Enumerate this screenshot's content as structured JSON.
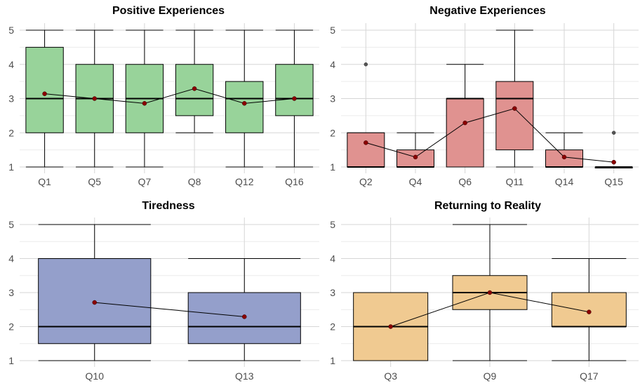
{
  "chart_data": [
    {
      "type": "box",
      "title": "Positive Experiences",
      "xlabel": "",
      "ylabel": "",
      "ylim": [
        1,
        5
      ],
      "yticks": [
        "1",
        "2",
        "3",
        "4",
        "5"
      ],
      "grid": true,
      "box_color": "#98D39A",
      "mean_line": true,
      "categories": [
        "Q1",
        "Q5",
        "Q7",
        "Q8",
        "Q12",
        "Q16"
      ],
      "boxes": [
        {
          "min": 1,
          "q1": 2,
          "median": 3,
          "q3": 4.5,
          "max": 5,
          "mean": 3.14,
          "outliers": []
        },
        {
          "min": 1,
          "q1": 2,
          "median": 3,
          "q3": 4,
          "max": 5,
          "mean": 3.0,
          "outliers": []
        },
        {
          "min": 1,
          "q1": 2,
          "median": 3,
          "q3": 4,
          "max": 5,
          "mean": 2.86,
          "outliers": []
        },
        {
          "min": 2,
          "q1": 2.5,
          "median": 3,
          "q3": 4,
          "max": 5,
          "mean": 3.29,
          "outliers": []
        },
        {
          "min": 1,
          "q1": 2,
          "median": 3,
          "q3": 3.5,
          "max": 5,
          "mean": 2.86,
          "outliers": []
        },
        {
          "min": 1,
          "q1": 2.5,
          "median": 3,
          "q3": 4,
          "max": 5,
          "mean": 3.0,
          "outliers": []
        }
      ]
    },
    {
      "type": "box",
      "title": "Negative Experiences",
      "xlabel": "",
      "ylabel": "",
      "ylim": [
        1,
        5
      ],
      "yticks": [
        "1",
        "2",
        "3",
        "4",
        "5"
      ],
      "grid": true,
      "box_color": "#E09290",
      "mean_line": true,
      "categories": [
        "Q2",
        "Q4",
        "Q6",
        "Q11",
        "Q14",
        "Q15"
      ],
      "boxes": [
        {
          "min": 1,
          "q1": 1,
          "median": 1,
          "q3": 2,
          "max": 2,
          "mean": 1.71,
          "outliers": [
            4
          ]
        },
        {
          "min": 1,
          "q1": 1,
          "median": 1,
          "q3": 1.5,
          "max": 2,
          "mean": 1.29,
          "outliers": []
        },
        {
          "min": 1,
          "q1": 1,
          "median": 3,
          "q3": 3,
          "max": 4,
          "mean": 2.29,
          "outliers": []
        },
        {
          "min": 1,
          "q1": 1.5,
          "median": 3,
          "q3": 3.5,
          "max": 5,
          "mean": 2.71,
          "outliers": []
        },
        {
          "min": 1,
          "q1": 1,
          "median": 1,
          "q3": 1.5,
          "max": 2,
          "mean": 1.29,
          "outliers": []
        },
        {
          "min": 1,
          "q1": 1,
          "median": 1,
          "q3": 1,
          "max": 1,
          "mean": 1.14,
          "outliers": [
            2
          ]
        }
      ]
    },
    {
      "type": "box",
      "title": "Tiredness",
      "xlabel": "",
      "ylabel": "",
      "ylim": [
        1,
        5
      ],
      "yticks": [
        "1",
        "2",
        "3",
        "4",
        "5"
      ],
      "grid": true,
      "box_color": "#949FCB",
      "mean_line": true,
      "categories": [
        "Q10",
        "Q13"
      ],
      "boxes": [
        {
          "min": 1,
          "q1": 1.5,
          "median": 2,
          "q3": 4,
          "max": 5,
          "mean": 2.71,
          "outliers": []
        },
        {
          "min": 1,
          "q1": 1.5,
          "median": 2,
          "q3": 3,
          "max": 4,
          "mean": 2.29,
          "outliers": []
        }
      ]
    },
    {
      "type": "box",
      "title": "Returning to Reality",
      "xlabel": "",
      "ylabel": "",
      "ylim": [
        1,
        5
      ],
      "yticks": [
        "1",
        "2",
        "3",
        "4",
        "5"
      ],
      "grid": true,
      "box_color": "#F0CA91",
      "mean_line": true,
      "categories": [
        "Q3",
        "Q9",
        "Q17"
      ],
      "boxes": [
        {
          "min": 1,
          "q1": 1,
          "median": 2,
          "q3": 3,
          "max": 3,
          "mean": 2.0,
          "outliers": []
        },
        {
          "min": 1,
          "q1": 2.5,
          "median": 3,
          "q3": 3.5,
          "max": 5,
          "mean": 3.0,
          "outliers": []
        },
        {
          "min": 1,
          "q1": 2,
          "median": 2,
          "q3": 3,
          "max": 4,
          "mean": 2.43,
          "outliers": []
        }
      ]
    }
  ]
}
